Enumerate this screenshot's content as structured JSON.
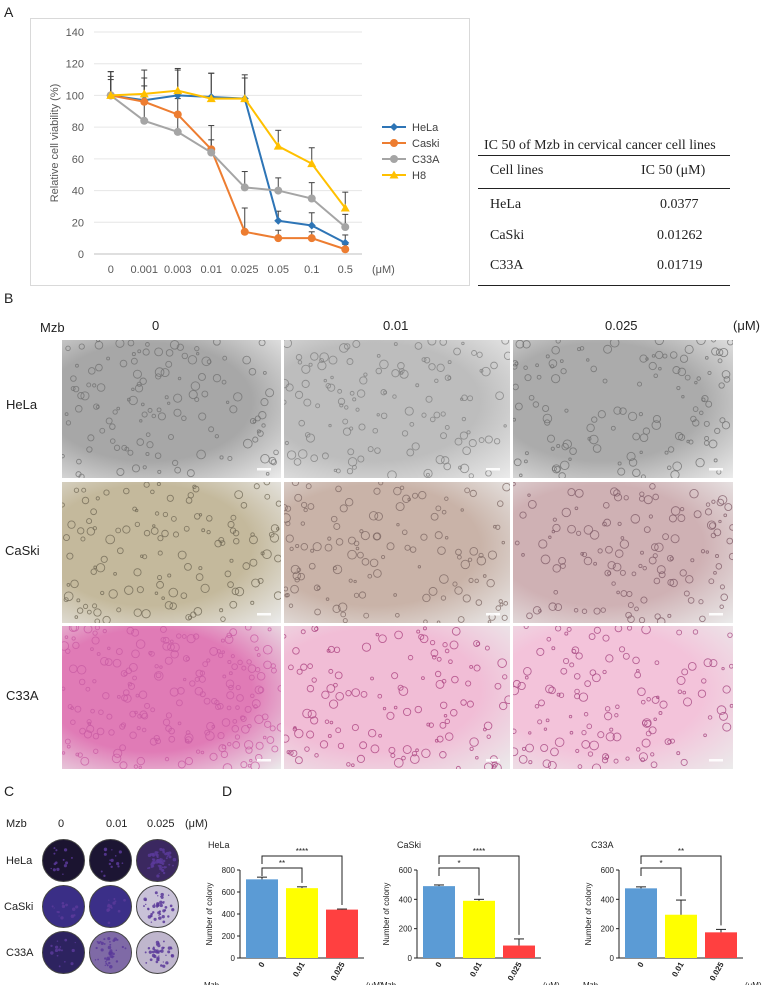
{
  "panels": {
    "a": "A",
    "b": "B",
    "c": "C",
    "d": "D"
  },
  "chart_data": [
    {
      "type": "line",
      "ylabel": "Relative cell viability (%)",
      "ylim": [
        0,
        140
      ],
      "yticks": [
        0,
        20,
        40,
        60,
        80,
        100,
        120,
        140
      ],
      "categories": [
        "0",
        "0.001",
        "0.003",
        "0.01",
        "0.025",
        "0.05",
        "0.1",
        "0.5"
      ],
      "unit_label": "(μM)",
      "grid": true,
      "legend": "right",
      "series": [
        {
          "name": "HeLa",
          "color": "#2e75b6",
          "marker": "diamond",
          "values": [
            100,
            97,
            100,
            99,
            98,
            21,
            18,
            7
          ],
          "errors": [
            15,
            14,
            16,
            15,
            13,
            6,
            8,
            5
          ]
        },
        {
          "name": "Caski",
          "color": "#ed7d31",
          "marker": "circle",
          "values": [
            100,
            96,
            88,
            66,
            14,
            10,
            10,
            3
          ],
          "errors": [
            12,
            10,
            10,
            15,
            15,
            5,
            4,
            3
          ]
        },
        {
          "name": "C33A",
          "color": "#a5a5a5",
          "marker": "circle",
          "values": [
            100,
            84,
            77,
            64,
            42,
            40,
            35,
            17
          ],
          "errors": [
            10,
            15,
            10,
            8,
            10,
            8,
            10,
            8
          ]
        },
        {
          "name": "H8",
          "color": "#ffc000",
          "marker": "triangle",
          "values": [
            100,
            101,
            103,
            98,
            98,
            68,
            57,
            29
          ],
          "errors": [
            15,
            15,
            14,
            16,
            15,
            10,
            10,
            10
          ]
        }
      ]
    },
    {
      "type": "table",
      "title": "IC 50 of Mzb in cervical cancer cell lines",
      "columns": [
        "Cell lines",
        "IC 50 (μM)"
      ],
      "rows": [
        [
          "HeLa",
          "0.0377"
        ],
        [
          "CaSki",
          "0.01262"
        ],
        [
          "C33A",
          "0.01719"
        ]
      ]
    },
    {
      "type": "bar",
      "title": "HeLa",
      "ylabel": "Number of colony",
      "ylim": [
        0,
        800
      ],
      "yticks": [
        0,
        200,
        400,
        600,
        800
      ],
      "categories": [
        "0",
        "0.01",
        "0.025"
      ],
      "values": [
        715,
        635,
        440
      ],
      "errors": [
        20,
        12,
        5
      ],
      "colors": [
        "#5b9bd5",
        "#ffff00",
        "#ff4040"
      ],
      "xlabel_left": "Mzb",
      "xlabel_right": "(μM)",
      "significance": [
        {
          "from": 0,
          "to": 1,
          "label": "**"
        },
        {
          "from": 0,
          "to": 2,
          "label": "****"
        }
      ]
    },
    {
      "type": "bar",
      "title": "CaSki",
      "ylabel": "Number of colony",
      "ylim": [
        0,
        600
      ],
      "yticks": [
        0,
        200,
        400,
        600
      ],
      "categories": [
        "0",
        "0.01",
        "0.025"
      ],
      "values": [
        490,
        390,
        85
      ],
      "errors": [
        8,
        10,
        45
      ],
      "colors": [
        "#5b9bd5",
        "#ffff00",
        "#ff4040"
      ],
      "xlabel_left": "Mzb",
      "xlabel_right": "(μM)",
      "significance": [
        {
          "from": 0,
          "to": 1,
          "label": "*"
        },
        {
          "from": 0,
          "to": 2,
          "label": "****"
        }
      ]
    },
    {
      "type": "bar",
      "title": "C33A",
      "ylabel": "Number of colony",
      "ylim": [
        0,
        600
      ],
      "yticks": [
        0,
        200,
        400,
        600
      ],
      "categories": [
        "0",
        "0.01",
        "0.025"
      ],
      "values": [
        475,
        295,
        175
      ],
      "errors": [
        10,
        100,
        20
      ],
      "colors": [
        "#5b9bd5",
        "#ffff00",
        "#ff4040"
      ],
      "xlabel_left": "Mzb",
      "xlabel_right": "(μM)",
      "significance": [
        {
          "from": 0,
          "to": 1,
          "label": "*"
        },
        {
          "from": 0,
          "to": 2,
          "label": "**"
        }
      ]
    }
  ],
  "micrographs": {
    "row_label_header": "Mzb",
    "columns": [
      "0",
      "0.01",
      "0.025"
    ],
    "unit": "(μM)",
    "rows": [
      "HeLa",
      "CaSki",
      "C33A"
    ]
  },
  "colony_plates": {
    "row_label_header": "Mzb",
    "columns": [
      "0",
      "0.01",
      "0.025"
    ],
    "unit": "(μM)",
    "rows": [
      "HeLa",
      "CaSki",
      "C33A"
    ]
  }
}
